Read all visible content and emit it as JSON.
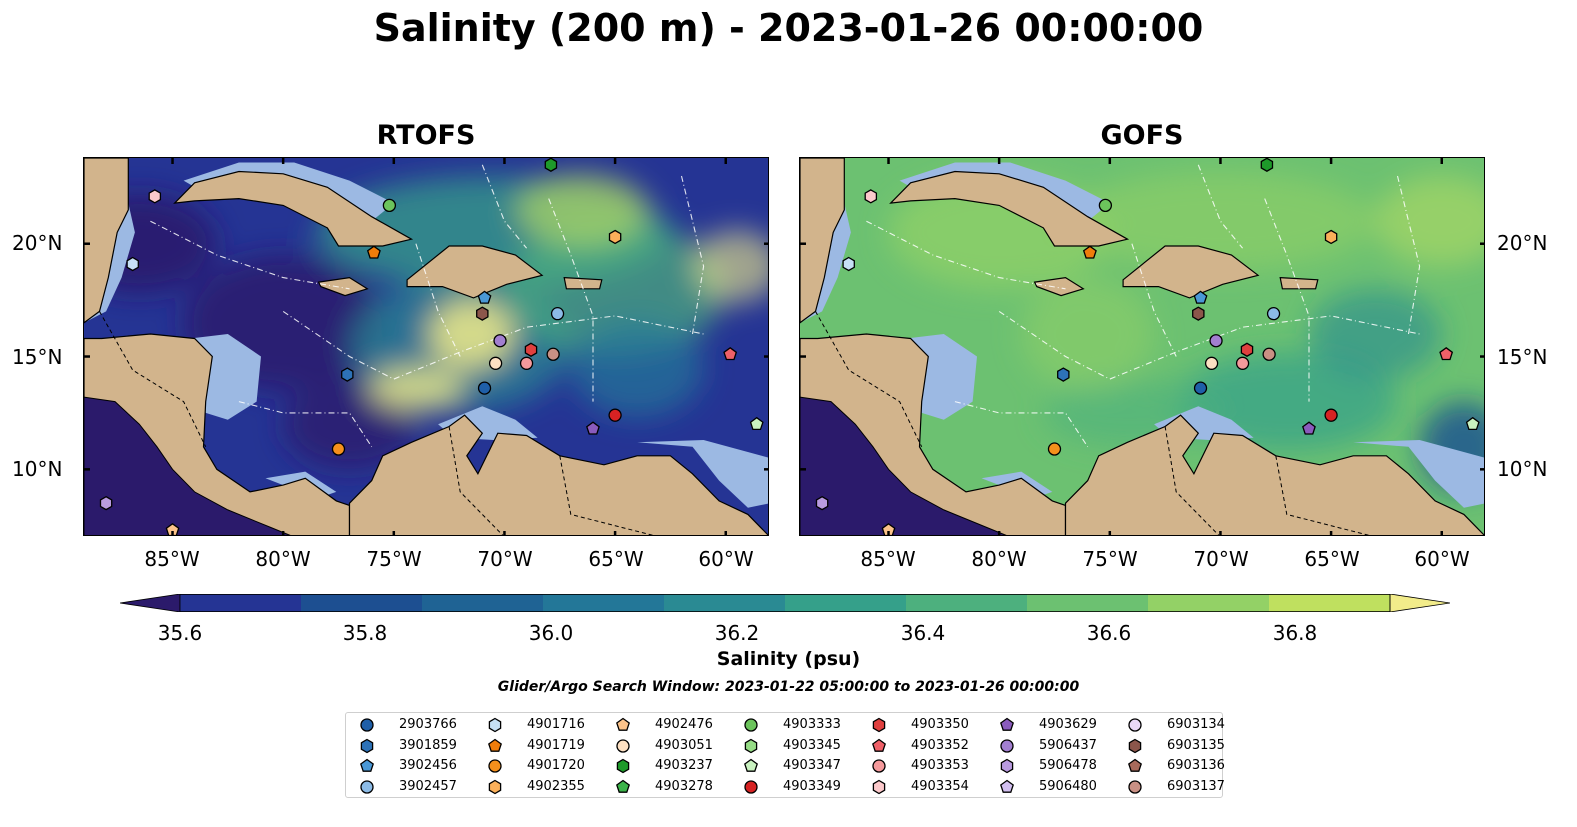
{
  "title": "Salinity (200 m) - 2023-01-26 00:00:00",
  "panels": [
    {
      "title": "RTOFS",
      "tone": "low"
    },
    {
      "title": "GOFS",
      "tone": "high"
    }
  ],
  "x_ticks": [
    "85°W",
    "80°W",
    "75°W",
    "70°W",
    "65°W",
    "60°W"
  ],
  "y_ticks": [
    "20°N",
    "15°N",
    "10°N"
  ],
  "colorbar": {
    "label": "Salinity (psu)",
    "ticks": [
      "35.6",
      "35.8",
      "36.0",
      "36.2",
      "36.4",
      "36.6",
      "36.8"
    ],
    "min": 35.5,
    "max": 36.9,
    "colors": [
      "#2b1a6b",
      "#253494",
      "#1d4f91",
      "#1f6394",
      "#237798",
      "#2a8a93",
      "#35a08a",
      "#4db07e",
      "#6cc171",
      "#93d166",
      "#bfe05f",
      "#f2ec8a"
    ]
  },
  "search_window": "Glider/Argo Search Window: 2023-01-22 05:00:00 to 2023-01-26 00:00:00",
  "legend": [
    {
      "id": "2903766",
      "marker": "circle",
      "color": "#1f5fa8"
    },
    {
      "id": "3901859",
      "marker": "hexagon",
      "color": "#2d72b8"
    },
    {
      "id": "3902456",
      "marker": "pentagon",
      "color": "#4a98d6"
    },
    {
      "id": "3902457",
      "marker": "circle",
      "color": "#8cbbe6"
    },
    {
      "id": "4901716",
      "marker": "hexagon",
      "color": "#c6e0f5"
    },
    {
      "id": "4901719",
      "marker": "pentagon",
      "color": "#ef7d0b"
    },
    {
      "id": "4901720",
      "marker": "circle",
      "color": "#f5901c"
    },
    {
      "id": "4902355",
      "marker": "hexagon",
      "color": "#fbb05a"
    },
    {
      "id": "4902476",
      "marker": "pentagon",
      "color": "#fcc38a"
    },
    {
      "id": "4903051",
      "marker": "circle",
      "color": "#fde0c2"
    },
    {
      "id": "4903237",
      "marker": "hexagon",
      "color": "#1e9a2a"
    },
    {
      "id": "4903278",
      "marker": "pentagon",
      "color": "#3cb34a"
    },
    {
      "id": "4903333",
      "marker": "circle",
      "color": "#6cc45c"
    },
    {
      "id": "4903345",
      "marker": "hexagon",
      "color": "#96dc86"
    },
    {
      "id": "4903347",
      "marker": "pentagon",
      "color": "#c9f2c0"
    },
    {
      "id": "4903349",
      "marker": "circle",
      "color": "#d62223"
    },
    {
      "id": "4903350",
      "marker": "hexagon",
      "color": "#e0403f"
    },
    {
      "id": "4903352",
      "marker": "pentagon",
      "color": "#ef6068"
    },
    {
      "id": "4903353",
      "marker": "circle",
      "color": "#f59a9c"
    },
    {
      "id": "4903354",
      "marker": "hexagon",
      "color": "#fcc9cb"
    },
    {
      "id": "4903629",
      "marker": "pentagon",
      "color": "#8a5bbd"
    },
    {
      "id": "5906437",
      "marker": "circle",
      "color": "#a27fd0"
    },
    {
      "id": "5906478",
      "marker": "hexagon",
      "color": "#b99be0"
    },
    {
      "id": "5906480",
      "marker": "pentagon",
      "color": "#d2bff0"
    },
    {
      "id": "6903134",
      "marker": "circle",
      "color": "#ead8f8"
    },
    {
      "id": "6903135",
      "marker": "hexagon",
      "color": "#8c564b"
    },
    {
      "id": "6903136",
      "marker": "pentagon",
      "color": "#a86a5b"
    },
    {
      "id": "6903137",
      "marker": "circle",
      "color": "#c99084"
    }
  ],
  "floats": [
    {
      "id": "2903766",
      "lon": -70.9,
      "lat": 13.6
    },
    {
      "id": "3901859",
      "lon": -77.1,
      "lat": 14.2
    },
    {
      "id": "3902456",
      "lon": -70.9,
      "lat": 17.6
    },
    {
      "id": "3902457",
      "lon": -67.6,
      "lat": 16.9
    },
    {
      "id": "4901716",
      "lon": -86.8,
      "lat": 19.1
    },
    {
      "id": "4901719",
      "lon": -75.9,
      "lat": 19.6
    },
    {
      "id": "4901720",
      "lon": -77.5,
      "lat": 10.9
    },
    {
      "id": "4902355",
      "lon": -65.0,
      "lat": 20.3
    },
    {
      "id": "4902476",
      "lon": -85.0,
      "lat": 7.3
    },
    {
      "id": "4903051",
      "lon": -70.4,
      "lat": 14.7
    },
    {
      "id": "4903237",
      "lon": -67.9,
      "lat": 23.5
    },
    {
      "id": "4903333",
      "lon": -75.2,
      "lat": 21.7
    },
    {
      "id": "4903347",
      "lon": -58.6,
      "lat": 12.0
    },
    {
      "id": "4903349",
      "lon": -65.0,
      "lat": 12.4
    },
    {
      "id": "4903350",
      "lon": -68.8,
      "lat": 15.3
    },
    {
      "id": "4903352",
      "lon": -59.8,
      "lat": 15.1
    },
    {
      "id": "4903353",
      "lon": -69.0,
      "lat": 14.7
    },
    {
      "id": "4903354",
      "lon": -85.8,
      "lat": 22.1
    },
    {
      "id": "5906478",
      "lon": -88.0,
      "lat": 8.5
    },
    {
      "id": "4903629",
      "lon": -66.0,
      "lat": 11.8
    },
    {
      "id": "5906437",
      "lon": -70.2,
      "lat": 15.7
    },
    {
      "id": "6903135",
      "lon": -71.0,
      "lat": 16.9
    },
    {
      "id": "6903137",
      "lon": -67.8,
      "lat": 15.1
    }
  ]
}
